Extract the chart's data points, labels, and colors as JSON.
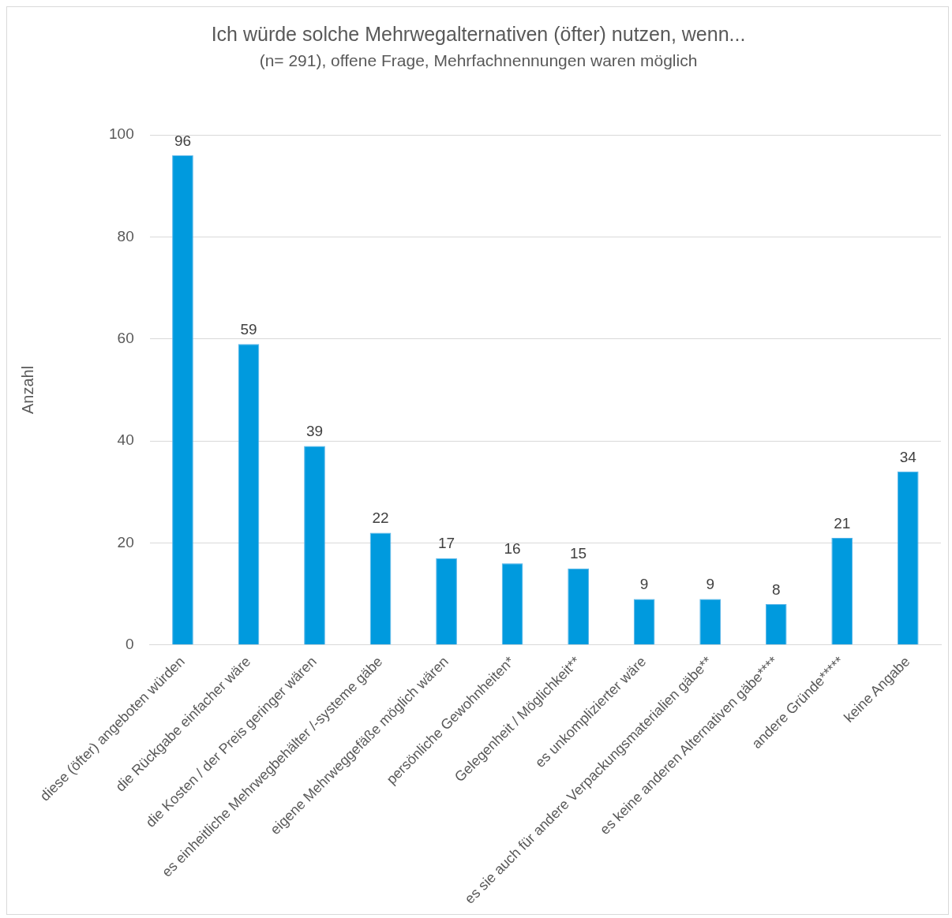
{
  "chart_data": {
    "type": "bar",
    "title": "Ich würde solche Mehrwegalternativen (öfter) nutzen, wenn...",
    "subtitle": "(n= 291), offene Frage, Mehrfachnennungen waren möglich",
    "ylabel": "Anzahl",
    "categories": [
      "diese (öfter) angeboten würden",
      "die Rückgabe einfacher wäre",
      "die Kosten / der Preis geringer wären",
      "es einheitliche Mehrwegbehälter /-systeme gäbe",
      "eigene Mehrweggefäße möglich wären",
      "persönliche Gewohnheiten*",
      "Gelegenheit / Möglichkeit**",
      "es unkomplizierter wäre",
      "es sie auch für andere Verpackungsmaterialien gäbe**",
      "es keine anderen Alternativen gäbe****",
      "andere Gründe*****",
      "keine Angabe"
    ],
    "values": [
      96,
      59,
      39,
      22,
      17,
      16,
      15,
      9,
      9,
      8,
      21,
      34
    ],
    "color": "#009ade",
    "ylim": [
      0,
      100
    ],
    "yticks": [
      0,
      20,
      40,
      60,
      80,
      100
    ],
    "grid": "y",
    "data_labels": true
  }
}
